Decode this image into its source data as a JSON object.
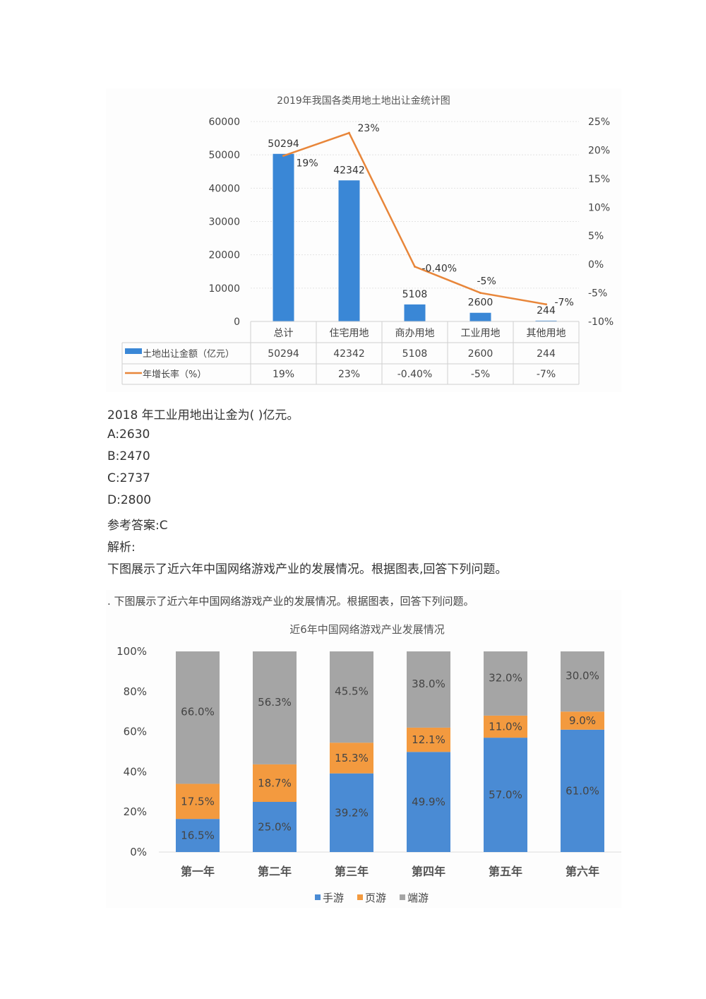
{
  "chart_data": [
    {
      "type": "bar+line",
      "title": "2019年我国各类用地土地出让金统计图",
      "categories": [
        "总计",
        "住宅用地",
        "商办用地",
        "工业用地",
        "其他用地"
      ],
      "series": [
        {
          "name": "土地出让金额（亿元）",
          "type": "bar",
          "axis": "left",
          "values": [
            50294,
            42342,
            5108,
            2600,
            244
          ],
          "labels": [
            "50294",
            "42342",
            "5108",
            "2600",
            "244"
          ],
          "color": "#3a87d6"
        },
        {
          "name": "年增长率（%）",
          "type": "line",
          "axis": "right",
          "values": [
            19,
            23,
            -0.4,
            -5,
            -7
          ],
          "labels": [
            "19%",
            "23%",
            "-0.40%",
            "-5%",
            "-7%"
          ],
          "color": "#e8863a"
        }
      ],
      "ylim_left": [
        0,
        60000
      ],
      "yticks_left": [
        "0",
        "10000",
        "20000",
        "30000",
        "40000",
        "50000",
        "60000"
      ],
      "ylim_right": [
        -10,
        25
      ],
      "yticks_right": [
        "-10%",
        "-5%",
        "0%",
        "5%",
        "10%",
        "15%",
        "20%",
        "25%"
      ],
      "grid": true,
      "legend": "data-table"
    },
    {
      "type": "stacked-bar",
      "heading": ". 下图展示了近六年中国网络游戏产业的发展情况。根据图表，回答下列问题。",
      "title": "近6年中国网络游戏产业发展情况",
      "categories": [
        "第一年",
        "第二年",
        "第三年",
        "第四年",
        "第五年",
        "第六年"
      ],
      "series": [
        {
          "name": "手游",
          "values": [
            16.5,
            25.0,
            39.2,
            49.9,
            57.0,
            61.0
          ],
          "labels": [
            "16.5%",
            "25.0%",
            "39.2%",
            "49.9%",
            "57.0%",
            "61.0%"
          ],
          "color": "#4a8bd4"
        },
        {
          "name": "页游",
          "values": [
            17.5,
            18.7,
            15.3,
            12.1,
            11.0,
            9.0
          ],
          "labels": [
            "17.5%",
            "18.7%",
            "15.3%",
            "12.1%",
            "11.0%",
            "9.0%"
          ],
          "color": "#f39a3f"
        },
        {
          "name": "端游",
          "values": [
            66.0,
            56.3,
            45.5,
            38.0,
            32.0,
            30.0
          ],
          "labels": [
            "66.0%",
            "56.3%",
            "45.5%",
            "38.0%",
            "32.0%",
            "30.0%"
          ],
          "color": "#a5a5a5"
        }
      ],
      "ylim": [
        0,
        100
      ],
      "yticks": [
        "0%",
        "20%",
        "40%",
        "60%",
        "80%",
        "100%"
      ],
      "legend": "bottom"
    }
  ],
  "question": {
    "stem": "2018 年工业用地出让金为(  )亿元。",
    "options": [
      "A:2630",
      "B:2470",
      "C:2737",
      "D:2800"
    ],
    "answer": "参考答案:C",
    "analysis": "解析:",
    "next_intro": "下图展示了近六年中国网络游戏产业的发展情况。根据图表,回答下列问题。"
  }
}
